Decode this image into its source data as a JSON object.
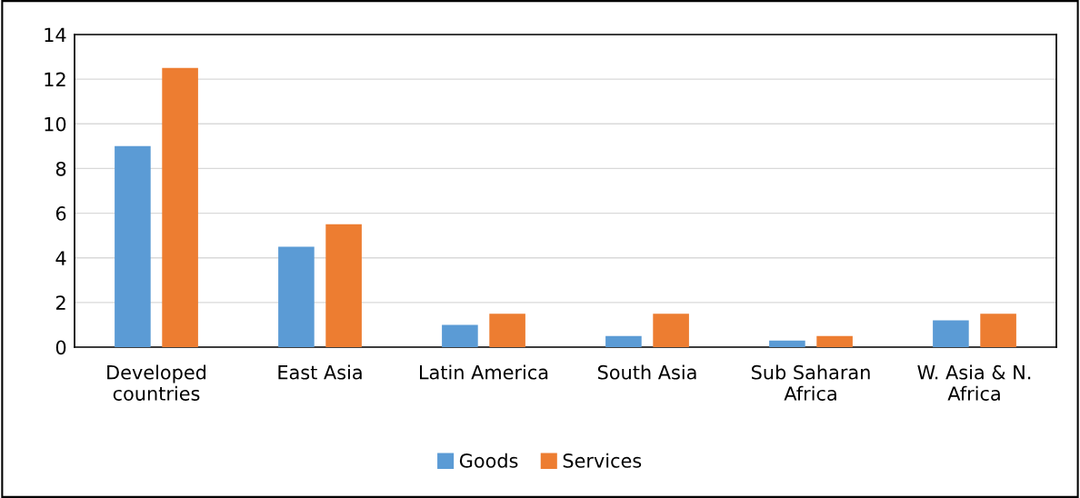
{
  "chart_data": {
    "type": "bar",
    "categories": [
      "Developed\ncountries",
      "East Asia",
      "Latin America",
      "South Asia",
      "Sub Saharan\nAfrica",
      "W. Asia & N.\nAfrica"
    ],
    "series": [
      {
        "name": "Goods",
        "color": "#5b9bd5",
        "values": [
          9,
          4.5,
          1,
          0.5,
          0.3,
          1.2
        ]
      },
      {
        "name": "Services",
        "color": "#ed7d31",
        "values": [
          12.5,
          5.5,
          1.5,
          1.5,
          0.5,
          1.5
        ]
      }
    ],
    "ylim": [
      0,
      14
    ],
    "yticks": [
      0,
      2,
      4,
      6,
      8,
      10,
      12,
      14
    ],
    "grid": "y",
    "legend": "bottom"
  }
}
